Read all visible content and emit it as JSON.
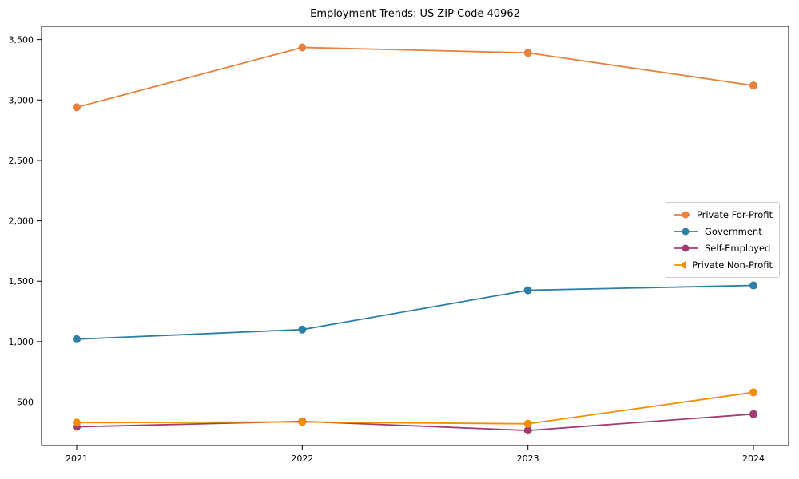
{
  "chart_data": {
    "type": "line",
    "title": "Employment Trends: US ZIP Code 40962",
    "xlabel": "",
    "ylabel": "",
    "x": [
      "2021",
      "2022",
      "2023",
      "2024"
    ],
    "yticks": [
      500,
      1000,
      1500,
      2000,
      2500,
      3000,
      3500
    ],
    "ytick_labels": [
      "500",
      "1,000",
      "1,500",
      "2,000",
      "2,500",
      "3,000",
      "3,500"
    ],
    "ylim": [
      140,
      3610
    ],
    "grid": false,
    "legend_position": "right-middle-inside",
    "frame_color": "#000000",
    "series": [
      {
        "name": "Private For-Profit",
        "color": "#e8813c",
        "values": [
          2940,
          3435,
          3390,
          3120
        ]
      },
      {
        "name": "Government",
        "color": "#2e7fa5",
        "values": [
          1020,
          1100,
          1425,
          1465
        ]
      },
      {
        "name": "Self-Employed",
        "color": "#a23b72",
        "values": [
          295,
          340,
          265,
          400
        ]
      },
      {
        "name": "Private Non-Profit",
        "color": "#f18f01",
        "values": [
          330,
          335,
          320,
          580
        ]
      }
    ]
  }
}
